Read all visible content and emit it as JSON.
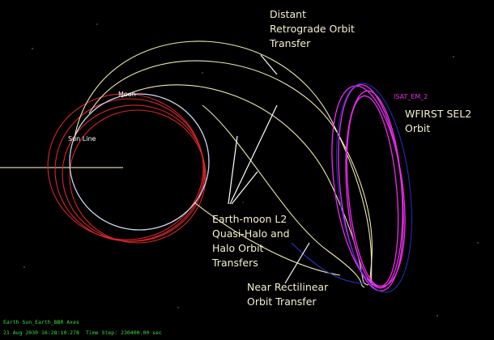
{
  "annotations": [
    {
      "lines": [
        "Distant",
        "Retrograde Orbit",
        "Transfer"
      ]
    },
    {
      "lines": [
        "WFIRST SEL2",
        "Orbit"
      ]
    },
    {
      "lines": [
        "Earth-moon L2",
        "Quasi-Halo and",
        "Halo Orbit",
        "Transfers"
      ]
    },
    {
      "lines": [
        "Near Rectilinear",
        "Orbit Transfer"
      ]
    }
  ],
  "scene_labels": {
    "moon": "Moon",
    "sun_line": "Sun Line",
    "spacecraft": "ISAT_EM_2"
  },
  "status": {
    "axes": "Earth Sun_Earth_BBR Axes",
    "time": "21 Aug 2030 16:28:10.278",
    "time_step": "Time Step: 230400.00 sec"
  }
}
